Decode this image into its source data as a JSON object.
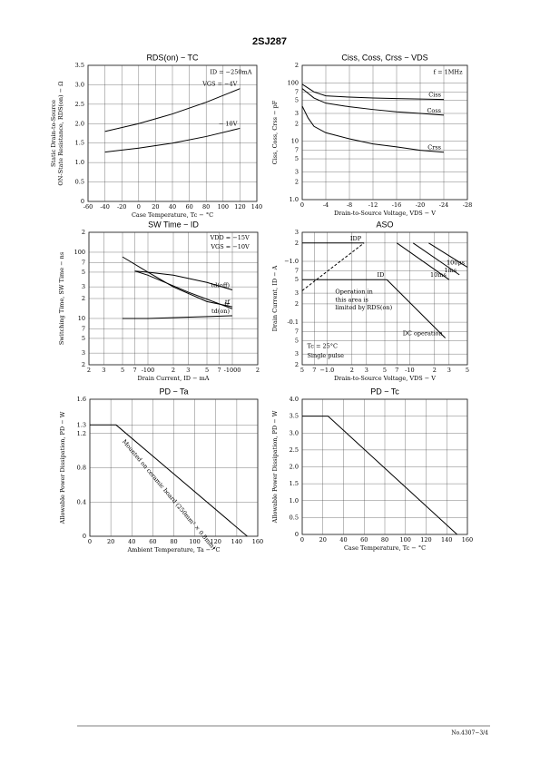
{
  "header": {
    "title": "2SJ287"
  },
  "footer": {
    "text": "No.4307−3/4"
  },
  "chart_data": [
    {
      "type": "line",
      "title": "RDS(on) − TC",
      "xlabel": "Case Temperature, Tc − °C",
      "ylabel": [
        "Static Drain-to-Source",
        "ON-State Resistance, RDS(on) − Ω"
      ],
      "xlim": [
        -60,
        140
      ],
      "xticks": [
        -60,
        -40,
        -20,
        0,
        20,
        40,
        60,
        80,
        100,
        120,
        140
      ],
      "ylim": [
        0,
        3.5
      ],
      "yticks": [
        0,
        0.5,
        {
          "value": 1,
          "label": "1.0"
        },
        1.5,
        {
          "value": 2,
          "label": "2.0"
        },
        2.5,
        {
          "value": 3,
          "label": "3.0"
        },
        3.5
      ],
      "grid": true,
      "color": "#000000",
      "annotations": [
        "ID = −250mA"
      ],
      "series": [
        {
          "name": "VGS = −4V",
          "x": [
            -40,
            0,
            40,
            80,
            120
          ],
          "values": [
            1.8,
            2.0,
            2.25,
            2.55,
            2.9
          ]
        },
        {
          "name": "− 10V",
          "x": [
            -40,
            0,
            40,
            80,
            120
          ],
          "values": [
            1.27,
            1.37,
            1.5,
            1.67,
            1.88
          ]
        }
      ]
    },
    {
      "type": "line",
      "title": "Ciss, Coss, Crss − VDS",
      "xlabel": "Drain-to-Source Voltage, VDS − V",
      "ylabel": [
        "Ciss, Coss, Crss − pF"
      ],
      "xlim": [
        0,
        -28
      ],
      "xticks": [
        0,
        -4,
        -8,
        -12,
        -16,
        -20,
        -24,
        -28
      ],
      "ylim": [
        1,
        200
      ],
      "ylog": true,
      "yticks": [
        {
          "value": 1,
          "label": "1.0"
        },
        2,
        3,
        5,
        7,
        10,
        {
          "value": 20,
          "label": "2"
        },
        {
          "value": 30,
          "label": "3"
        },
        {
          "value": 50,
          "label": "5"
        },
        {
          "value": 70,
          "label": "7"
        },
        100,
        {
          "value": 200,
          "label": "2"
        }
      ],
      "grid": true,
      "color": "#000000",
      "annotations": [
        "f = 1MHz"
      ],
      "series": [
        {
          "name": "Ciss",
          "x": [
            0,
            -2,
            -4,
            -8,
            -12,
            -16,
            -20,
            -24
          ],
          "values": [
            95,
            70,
            60,
            57,
            55,
            54,
            53,
            52
          ]
        },
        {
          "name": "Coss",
          "x": [
            0,
            -2,
            -4,
            -8,
            -12,
            -16,
            -20,
            -24
          ],
          "values": [
            80,
            55,
            45,
            39,
            35,
            32,
            30,
            28
          ]
        },
        {
          "name": "Crss",
          "x": [
            0,
            -1,
            -2,
            -4,
            -8,
            -12,
            -16,
            -20,
            -24
          ],
          "values": [
            40,
            25,
            18,
            14,
            11,
            9,
            8,
            7,
            6.5
          ]
        }
      ]
    },
    {
      "type": "line",
      "title": "SW Time − ID",
      "xlabel": "Drain Current, ID − mA",
      "ylabel": [
        "Switching Time, SW Time − ns"
      ],
      "xlim": [
        -20,
        -2000
      ],
      "xlog": true,
      "xticks": [
        {
          "value": -20,
          "label": "2"
        },
        {
          "value": -30,
          "label": "3"
        },
        {
          "value": -50,
          "label": "5"
        },
        {
          "value": -70,
          "label": "7"
        },
        -100,
        {
          "value": -200,
          "label": "2"
        },
        {
          "value": -300,
          "label": "3"
        },
        {
          "value": -500,
          "label": "5"
        },
        {
          "value": -700,
          "label": "7"
        },
        -1000,
        {
          "value": -2000,
          "label": "2"
        }
      ],
      "ylim": [
        2,
        200
      ],
      "ylog": true,
      "yticks": [
        2,
        3,
        5,
        7,
        10,
        {
          "value": 20,
          "label": "2"
        },
        {
          "value": 30,
          "label": "3"
        },
        {
          "value": 50,
          "label": "5"
        },
        {
          "value": 70,
          "label": "7"
        },
        100,
        {
          "value": 200,
          "label": "2"
        }
      ],
      "grid": true,
      "color": "#000000",
      "annotations": [
        "VDD = −15V",
        "VGS = −10V"
      ],
      "series": [
        {
          "name": "td(off)",
          "x": [
            -70,
            -100,
            -200,
            -500,
            -1000
          ],
          "values": [
            52,
            50,
            45,
            35,
            27
          ]
        },
        {
          "name": "tf",
          "x": [
            -50,
            -100,
            -200,
            -500,
            -1000
          ],
          "values": [
            85,
            50,
            30,
            18,
            15
          ]
        },
        {
          "name": "tr",
          "x": [
            -70,
            -100,
            -300,
            -1000
          ],
          "values": [
            52,
            45,
            25,
            14
          ]
        },
        {
          "name": "td(on)",
          "x": [
            -50,
            -100,
            -1000
          ],
          "values": [
            10,
            10,
            11
          ]
        }
      ]
    },
    {
      "type": "line",
      "title": "ASO",
      "xlabel": "Drain-to-Source Voltage, VDS − V",
      "ylabel": [
        "Drain Current, ID − A"
      ],
      "xlim": [
        -0.5,
        -50
      ],
      "xlog": true,
      "xticks": [
        {
          "value": -0.5,
          "label": "5"
        },
        {
          "value": -0.7,
          "label": "7"
        },
        {
          "value": -1,
          "label": "−1.0"
        },
        {
          "value": -2,
          "label": "2"
        },
        {
          "value": -3,
          "label": "3"
        },
        {
          "value": -5,
          "label": "5"
        },
        {
          "value": -7,
          "label": "7"
        },
        -10,
        {
          "value": -20,
          "label": "2"
        },
        {
          "value": -30,
          "label": "3"
        },
        {
          "value": -50,
          "label": "5"
        }
      ],
      "ylim": [
        -0.02,
        -3
      ],
      "ylog": true,
      "yticks": [
        {
          "value": -0.02,
          "label": "2"
        },
        {
          "value": -0.03,
          "label": "3"
        },
        {
          "value": -0.05,
          "label": "5"
        },
        {
          "value": -0.07,
          "label": "7"
        },
        -0.1,
        {
          "value": -0.2,
          "label": "2"
        },
        {
          "value": -0.3,
          "label": "3"
        },
        {
          "value": -0.5,
          "label": "5"
        },
        {
          "value": -0.7,
          "label": "7"
        },
        {
          "value": -1,
          "label": "−1.0"
        },
        {
          "value": -2,
          "label": "2"
        },
        {
          "value": -3,
          "label": "3"
        }
      ],
      "grid": true,
      "color": "#000000",
      "annotations": [
        "Operation in",
        "this area is",
        "limited by RDS(on)",
        "Tc = 25°C",
        "Single pulse"
      ],
      "series": [
        {
          "name": "IDP",
          "x": [
            -0.5,
            -2.8
          ],
          "values": [
            -2,
            -2
          ]
        },
        {
          "name": "ID",
          "x": [
            -0.5,
            -5.3
          ],
          "values": [
            -0.5,
            -0.5
          ]
        },
        {
          "x": [
            -0.5,
            -2.8
          ],
          "values": [
            -0.33,
            -2
          ],
          "style": "dashed"
        },
        {
          "name": "DC operation",
          "x": [
            -5.3,
            -27
          ],
          "values": [
            -0.5,
            -0.055
          ]
        },
        {
          "name": "10ms",
          "x": [
            -7,
            -30
          ],
          "values": [
            -2,
            -0.5
          ]
        },
        {
          "name": "1ms",
          "x": [
            -11,
            -40
          ],
          "values": [
            -2,
            -0.6
          ]
        },
        {
          "name": "100μs",
          "x": [
            -17,
            -50
          ],
          "values": [
            -2,
            -0.8
          ]
        }
      ]
    },
    {
      "type": "line",
      "title": "PD − Ta",
      "xlabel": "Ambient Temperature, Ta − °C",
      "ylabel": [
        "Allowable Power Dissipation, PD − W"
      ],
      "xlim": [
        0,
        160
      ],
      "xticks": [
        0,
        20,
        40,
        60,
        80,
        100,
        120,
        140,
        160
      ],
      "ylim": [
        0,
        1.6
      ],
      "yticks": [
        0,
        0.4,
        0.8,
        1.2,
        1.3,
        1.6
      ],
      "grid": true,
      "color": "#000000",
      "annotations": [
        "Mounted on ceramic board (250mm² × 0.8mm)"
      ],
      "x": [
        0,
        25,
        150
      ],
      "values": [
        1.3,
        1.3,
        0
      ]
    },
    {
      "type": "line",
      "title": "PD − Tc",
      "xlabel": "Case Temperature, Tc − °C",
      "ylabel": [
        "Allowable Power Dissipation, PD − W"
      ],
      "xlim": [
        0,
        160
      ],
      "xticks": [
        0,
        20,
        40,
        60,
        80,
        100,
        120,
        140,
        160
      ],
      "ylim": [
        0,
        4
      ],
      "yticks": [
        0,
        0.5,
        {
          "value": 1,
          "label": "1.0"
        },
        1.5,
        {
          "value": 2,
          "label": "2.0"
        },
        2.5,
        {
          "value": 3,
          "label": "3.0"
        },
        3.5,
        {
          "value": 4,
          "label": "4.0"
        }
      ],
      "grid": true,
      "color": "#000000",
      "x": [
        0,
        25,
        150
      ],
      "values": [
        3.5,
        3.5,
        0
      ]
    }
  ]
}
